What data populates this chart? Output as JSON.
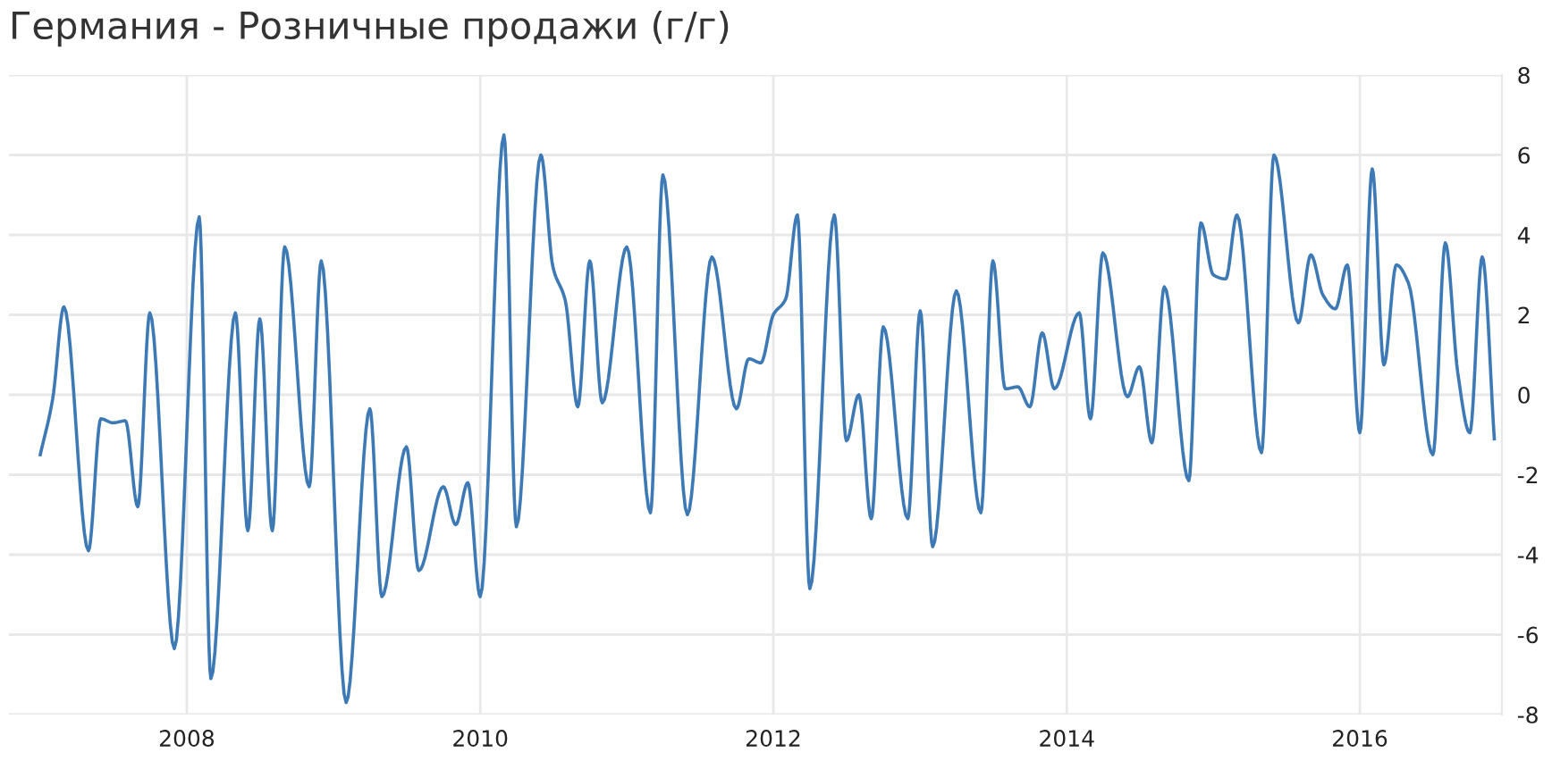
{
  "chart_data": {
    "type": "line",
    "title": "Германия - Розничные продажи (г/г)",
    "x": [
      "2007-01",
      "2007-02",
      "2007-03",
      "2007-05",
      "2007-06",
      "2007-07",
      "2007-08",
      "2007-09",
      "2007-10",
      "2007-12",
      "2008-02",
      "2008-03",
      "2008-05",
      "2008-06",
      "2008-07",
      "2008-08",
      "2008-09",
      "2008-11",
      "2008-12",
      "2009-02",
      "2009-04",
      "2009-05",
      "2009-07",
      "2009-08",
      "2009-10",
      "2009-11",
      "2009-12",
      "2010-01",
      "2010-03",
      "2010-04",
      "2010-06",
      "2010-07",
      "2010-08",
      "2010-09",
      "2010-10",
      "2010-11",
      "2011-01",
      "2011-03",
      "2011-04",
      "2011-06",
      "2011-08",
      "2011-10",
      "2011-11",
      "2011-12",
      "2012-01",
      "2012-02",
      "2012-03",
      "2012-04",
      "2012-06",
      "2012-07",
      "2012-08",
      "2012-09",
      "2012-10",
      "2012-12",
      "2013-01",
      "2013-02",
      "2013-04",
      "2013-06",
      "2013-07",
      "2013-08",
      "2013-09",
      "2013-10",
      "2013-11",
      "2013-12",
      "2014-02",
      "2014-03",
      "2014-04",
      "2014-06",
      "2014-07",
      "2014-08",
      "2014-09",
      "2014-11",
      "2014-12",
      "2015-01",
      "2015-02",
      "2015-03",
      "2015-05",
      "2015-06",
      "2015-08",
      "2015-09",
      "2015-10",
      "2015-11",
      "2015-12",
      "2016-01",
      "2016-02",
      "2016-03",
      "2016-04",
      "2016-05",
      "2016-07",
      "2016-08",
      "2016-09",
      "2016-10",
      "2016-11",
      "2016-12"
    ],
    "series": [
      {
        "color": "#3d7ab5",
        "values": [
          -1.5,
          -0.1,
          2.2,
          -3.9,
          -0.6,
          -0.7,
          -0.65,
          -2.8,
          2.05,
          -6.35,
          4.45,
          -7.1,
          2.05,
          -3.4,
          1.9,
          -3.4,
          3.7,
          -2.3,
          3.35,
          -7.7,
          -0.35,
          -5.05,
          -1.3,
          -4.4,
          -2.3,
          -3.25,
          -2.2,
          -5.05,
          6.5,
          -3.3,
          6.0,
          3.2,
          2.35,
          -0.3,
          3.35,
          -0.2,
          3.7,
          -2.95,
          5.5,
          -3.0,
          3.45,
          -0.35,
          0.9,
          0.8,
          2.0,
          2.4,
          4.5,
          -4.85,
          4.5,
          -1.15,
          0.0,
          -3.1,
          1.7,
          -3.1,
          2.1,
          -3.8,
          2.6,
          -2.95,
          3.35,
          0.15,
          0.2,
          -0.3,
          1.55,
          0.15,
          2.05,
          -0.6,
          3.55,
          -0.05,
          0.7,
          -1.2,
          2.7,
          -2.15,
          4.3,
          3.0,
          2.9,
          4.5,
          -1.45,
          6.0,
          1.8,
          3.5,
          2.5,
          2.15,
          3.25,
          -0.95,
          5.65,
          0.75,
          3.25,
          2.8,
          -1.5,
          3.8,
          0.55,
          -0.95,
          3.45,
          -1.1
        ]
      }
    ],
    "xlim": [
      "2006-10-15",
      "2016-12-20"
    ],
    "xticks": [
      {
        "value": "2008",
        "label": "2008"
      },
      {
        "value": "2010",
        "label": "2010"
      },
      {
        "value": "2012",
        "label": "2012"
      },
      {
        "value": "2014",
        "label": "2014"
      },
      {
        "value": "2016",
        "label": "2016"
      }
    ],
    "ylim": [
      -8,
      8
    ],
    "yticks": [
      -8,
      -6,
      -4,
      -2,
      0,
      2,
      4,
      6,
      8
    ],
    "grid": true,
    "marker": "none",
    "line_style": "solid"
  }
}
